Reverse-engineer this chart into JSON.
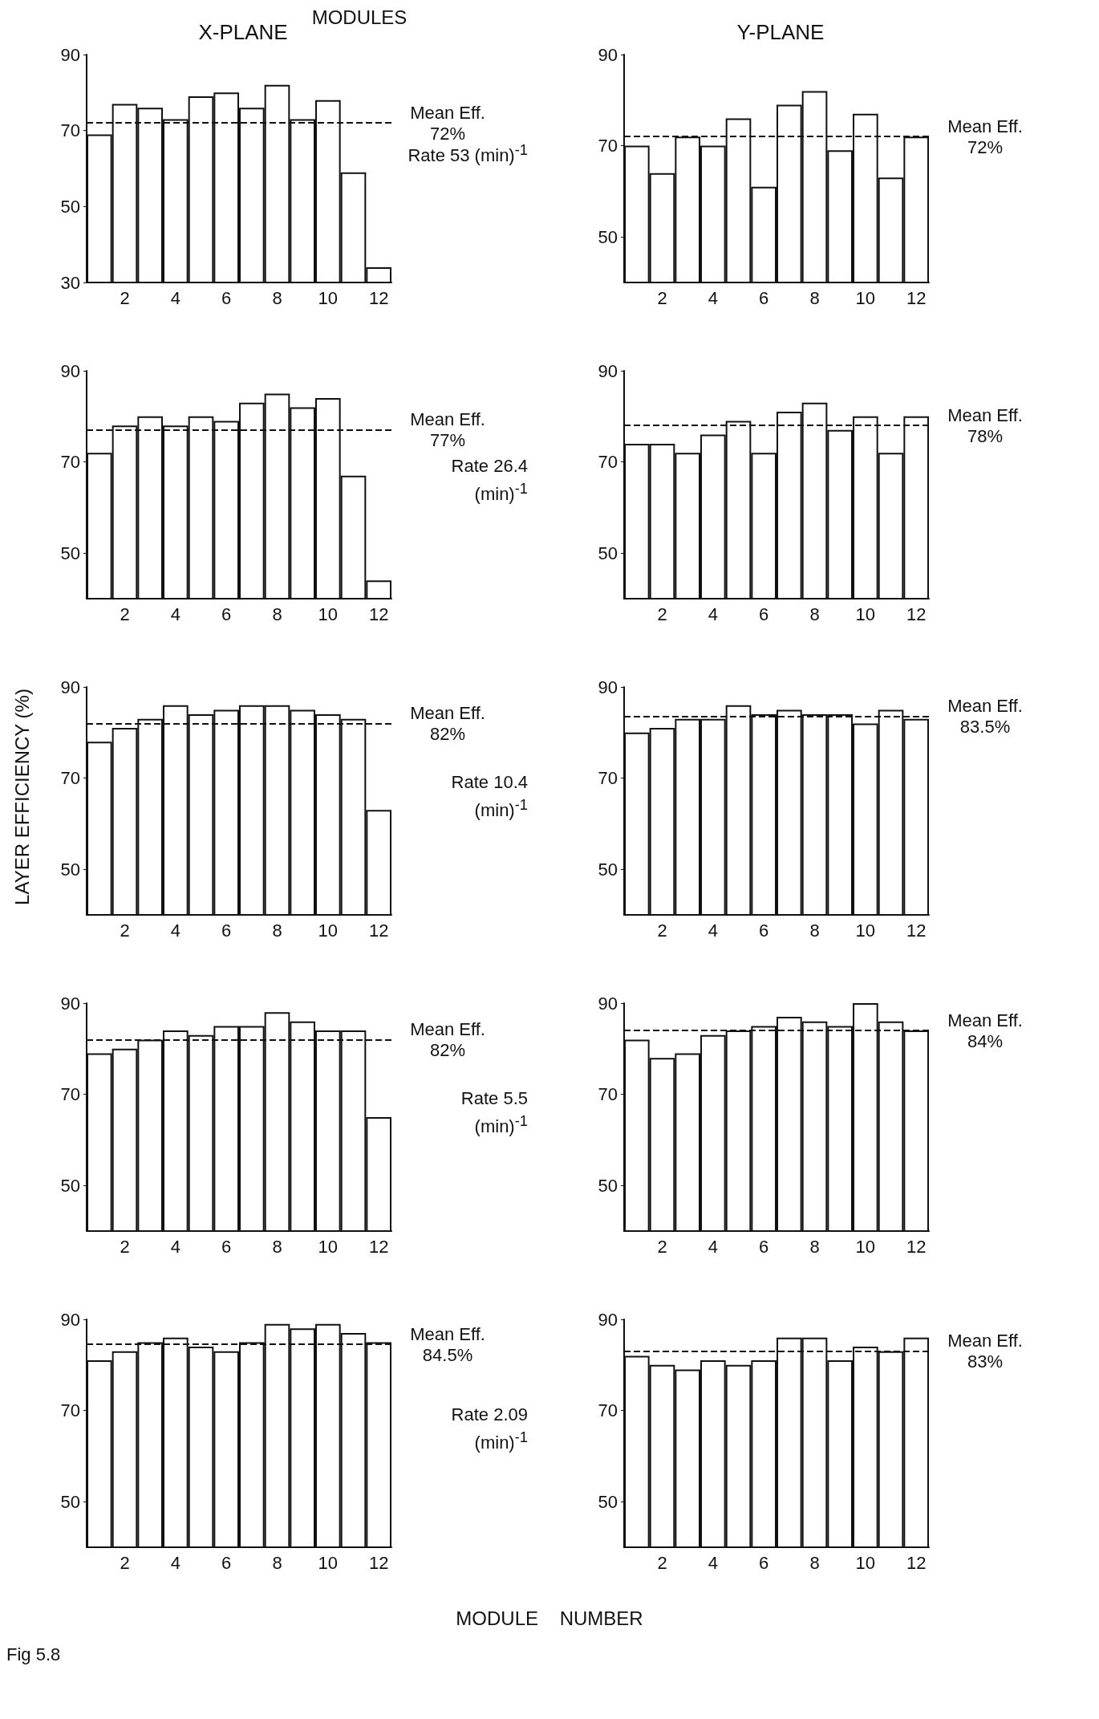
{
  "chart_data": [
    {
      "type": "bar",
      "title": "X-PLANE",
      "subtitle": "MODULES",
      "categories": [
        null,
        "2",
        null,
        "4",
        null,
        "6",
        null,
        "8",
        null,
        "10",
        null,
        "12"
      ],
      "values": [
        69,
        77,
        76,
        73,
        79,
        80,
        76,
        82,
        73,
        78,
        59,
        34
      ],
      "color": "#ffffff",
      "ylim": [
        30,
        90
      ],
      "yticks": [
        30,
        50,
        70,
        90
      ],
      "ref_lines": [
        {
          "axis": "y",
          "value": 72,
          "label": "Mean Eff.\n72%",
          "line_style": "dashed"
        }
      ],
      "annotations": [
        "Rate 53 (min)$^{-1}$"
      ]
    },
    {
      "type": "bar",
      "title": "Y-PLANE",
      "categories": [
        null,
        "2",
        null,
        "4",
        null,
        "6",
        null,
        "8",
        null,
        "10",
        null,
        "12"
      ],
      "values": [
        70,
        64,
        72,
        70,
        76,
        61,
        79,
        82,
        69,
        77,
        63,
        72
      ],
      "color": "#ffffff",
      "ylim": [
        40,
        90
      ],
      "yticks": [
        50,
        70,
        90
      ],
      "ref_lines": [
        {
          "axis": "y",
          "value": 72,
          "label": "Mean Eff.\n72%",
          "line_style": "dashed"
        }
      ]
    },
    {
      "type": "bar",
      "categories": [
        null,
        "2",
        null,
        "4",
        null,
        "6",
        null,
        "8",
        null,
        "10",
        null,
        "12"
      ],
      "values": [
        72,
        78,
        80,
        78,
        80,
        79,
        83,
        85,
        82,
        84,
        67,
        44
      ],
      "color": "#ffffff",
      "ylim": [
        40,
        90
      ],
      "yticks": [
        50,
        70,
        90
      ],
      "ref_lines": [
        {
          "axis": "y",
          "value": 77,
          "label": "Mean Eff.\n77%",
          "line_style": "dashed"
        }
      ],
      "annotations": [
        "Rate 26.4 (min)$^{-1}$"
      ]
    },
    {
      "type": "bar",
      "categories": [
        null,
        "2",
        null,
        "4",
        null,
        "6",
        null,
        "8",
        null,
        "10",
        null,
        "12"
      ],
      "values": [
        74,
        74,
        72,
        76,
        79,
        72,
        81,
        83,
        77,
        80,
        72,
        80
      ],
      "color": "#ffffff",
      "ylim": [
        40,
        90
      ],
      "yticks": [
        50,
        70,
        90
      ],
      "ref_lines": [
        {
          "axis": "y",
          "value": 78,
          "label": "Mean Eff.\n78%",
          "line_style": "dashed"
        }
      ]
    },
    {
      "type": "bar",
      "categories": [
        null,
        "2",
        null,
        "4",
        null,
        "6",
        null,
        "8",
        null,
        "10",
        null,
        "12"
      ],
      "values": [
        78,
        81,
        83,
        86,
        84,
        85,
        86,
        86,
        85,
        84,
        83,
        63
      ],
      "color": "#ffffff",
      "ylim": [
        40,
        90
      ],
      "yticks": [
        50,
        70,
        90
      ],
      "ref_lines": [
        {
          "axis": "y",
          "value": 82,
          "label": "Mean Eff.\n82%",
          "line_style": "dashed"
        }
      ],
      "ylabel": "LAYER EFFICIENCY (%)",
      "annotations": [
        "Rate 10.4 (min)$^{-1}$"
      ]
    },
    {
      "type": "bar",
      "categories": [
        null,
        "2",
        null,
        "4",
        null,
        "6",
        null,
        "8",
        null,
        "10",
        null,
        "12"
      ],
      "values": [
        80,
        81,
        83,
        83,
        86,
        84,
        85,
        84,
        84,
        82,
        85,
        83
      ],
      "color": "#ffffff",
      "ylim": [
        40,
        90
      ],
      "yticks": [
        50,
        70,
        90
      ],
      "ref_lines": [
        {
          "axis": "y",
          "value": 83.5,
          "label": "Mean Eff.\n83.5%",
          "line_style": "dashed"
        }
      ]
    },
    {
      "type": "bar",
      "categories": [
        null,
        "2",
        null,
        "4",
        null,
        "6",
        null,
        "8",
        null,
        "10",
        null,
        "12"
      ],
      "values": [
        79,
        80,
        82,
        84,
        83,
        85,
        85,
        88,
        86,
        84,
        84,
        65
      ],
      "color": "#ffffff",
      "ylim": [
        40,
        90
      ],
      "yticks": [
        50,
        70,
        90
      ],
      "ref_lines": [
        {
          "axis": "y",
          "value": 82,
          "label": "Mean Eff.\n82%",
          "line_style": "dashed"
        }
      ],
      "annotations": [
        "Rate 5.5 (min)$^{-1}$"
      ]
    },
    {
      "type": "bar",
      "categories": [
        null,
        "2",
        null,
        "4",
        null,
        "6",
        null,
        "8",
        null,
        "10",
        null,
        "12"
      ],
      "values": [
        82,
        78,
        79,
        83,
        84,
        85,
        87,
        86,
        85,
        90,
        86,
        84
      ],
      "color": "#ffffff",
      "ylim": [
        40,
        90
      ],
      "yticks": [
        50,
        70,
        90
      ],
      "ref_lines": [
        {
          "axis": "y",
          "value": 84,
          "label": "Mean Eff.\n84%",
          "line_style": "dashed"
        }
      ]
    },
    {
      "type": "bar",
      "xlabel": "MODULE NUMBER",
      "categories": [
        null,
        "2",
        null,
        "4",
        null,
        "6",
        null,
        "8",
        null,
        "10",
        null,
        "12"
      ],
      "values": [
        81,
        83,
        85,
        86,
        84,
        83,
        85,
        89,
        88,
        89,
        87,
        85
      ],
      "color": "#ffffff",
      "ylim": [
        40,
        90
      ],
      "yticks": [
        50,
        70,
        90
      ],
      "ref_lines": [
        {
          "axis": "y",
          "value": 84.5,
          "label": "Mean Eff.\n84.5%",
          "line_style": "dashed"
        }
      ],
      "annotations": [
        "Rate 2.09 (min)$^{-1}$",
        "Fig 5.8"
      ]
    },
    {
      "type": "bar",
      "categories": [
        null,
        "2",
        null,
        "4",
        null,
        "6",
        null,
        "8",
        null,
        "10",
        null,
        "12"
      ],
      "values": [
        82,
        80,
        79,
        81,
        80,
        81,
        86,
        86,
        81,
        84,
        83,
        86
      ],
      "color": "#ffffff",
      "ylim": [
        40,
        90
      ],
      "yticks": [
        50,
        70,
        90
      ],
      "ref_lines": [
        {
          "axis": "y",
          "value": 83,
          "label": "Mean Eff.\n83%",
          "line_style": "dashed"
        }
      ]
    }
  ]
}
